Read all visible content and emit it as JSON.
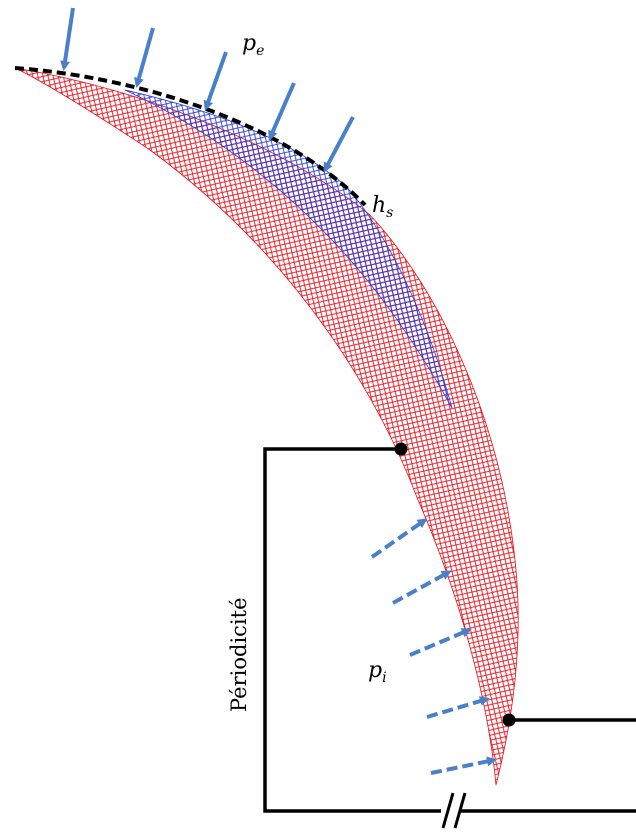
{
  "labels": {
    "pe_base": "p",
    "pe_sub": "e",
    "hs_base": "h",
    "hs_sub": "s",
    "pi_base": "p",
    "pi_sub": "i",
    "periodicity": "Périodicité"
  },
  "colors": {
    "mesh_outer": "#e8101a",
    "mesh_inner": "#2a3bd6",
    "arrow": "#4a80c8",
    "frame": "#000000"
  },
  "icons": {
    "external_pressure": "solid-arrow-icon",
    "internal_pressure": "dashed-arrow-icon",
    "node": "filled-circle-icon",
    "break": "double-slash-break-icon"
  }
}
